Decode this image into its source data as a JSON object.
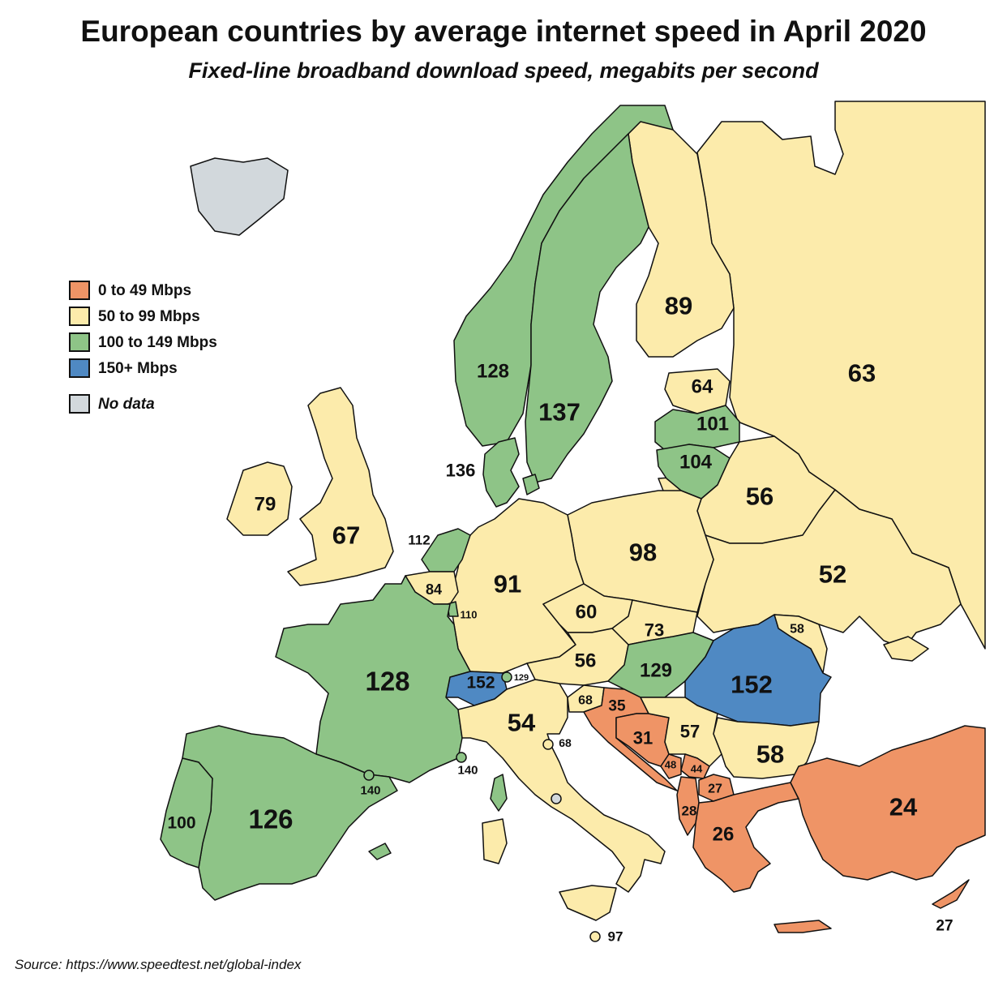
{
  "title": "European countries by average internet speed in April 2020",
  "subtitle": "Fixed-line broadband download speed, megabits per second",
  "source": "Source: https://www.speedtest.net/global-index",
  "legend": [
    {
      "label": "0 to 49 Mbps",
      "color": "#ef9466"
    },
    {
      "label": "50 to 99 Mbps",
      "color": "#fcebab"
    },
    {
      "label": "100 to 149 Mbps",
      "color": "#8ec487"
    },
    {
      "label": "150+ Mbps",
      "color": "#4f89c3"
    },
    {
      "label": "No data",
      "color": "#d2d8dc"
    }
  ],
  "regions": {
    "iceland": {
      "label": ""
    },
    "norway": {
      "label": "128"
    },
    "sweden": {
      "label": "137"
    },
    "finland": {
      "label": "89"
    },
    "russia": {
      "label": "63"
    },
    "estonia": {
      "label": "64"
    },
    "latvia": {
      "label": "101"
    },
    "lithuania": {
      "label": "104"
    },
    "belarus": {
      "label": "56"
    },
    "denmark": {
      "label": "136"
    },
    "ireland": {
      "label": "79"
    },
    "uk": {
      "label": "67"
    },
    "netherlands": {
      "label": "112"
    },
    "belgium": {
      "label": "84"
    },
    "luxembourg": {
      "label": "110"
    },
    "germany": {
      "label": "91"
    },
    "poland": {
      "label": "98"
    },
    "ukraine": {
      "label": "52"
    },
    "czechia": {
      "label": "60"
    },
    "slovakia": {
      "label": "73"
    },
    "moldova": {
      "label": "58"
    },
    "austria": {
      "label": "56"
    },
    "hungary": {
      "label": "129"
    },
    "romania": {
      "label": "152"
    },
    "switzerland": {
      "label": "152"
    },
    "liechtenstein": {
      "label": "129"
    },
    "france": {
      "label": "128"
    },
    "slovenia": {
      "label": "68"
    },
    "croatia": {
      "label": "35"
    },
    "bosnia": {
      "label": "31"
    },
    "serbia": {
      "label": "57"
    },
    "bulgaria": {
      "label": "58"
    },
    "italy": {
      "label": "54"
    },
    "san_marino": {
      "label": "68"
    },
    "monaco": {
      "label": "140"
    },
    "andorra": {
      "label": "140"
    },
    "montenegro": {
      "label": "48"
    },
    "kosovo": {
      "label": "44"
    },
    "north_macedonia": {
      "label": "27"
    },
    "albania": {
      "label": "28"
    },
    "greece": {
      "label": "26"
    },
    "turkey": {
      "label": "24"
    },
    "cyprus": {
      "label": "27"
    },
    "spain": {
      "label": "126"
    },
    "portugal": {
      "label": "100"
    },
    "malta": {
      "label": "97"
    },
    "vatican": {
      "label": ""
    }
  }
}
